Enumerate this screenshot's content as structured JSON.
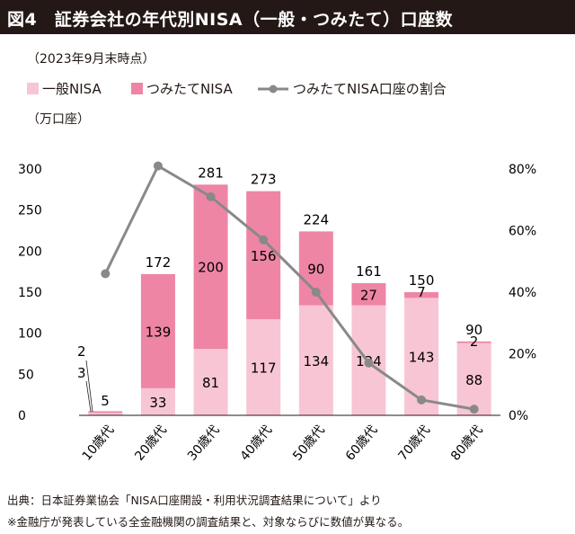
{
  "title": "図4　証券会社の年代別NISA（一般・つみたて）口座数",
  "date_note": "（2023年9月末時点）",
  "unit_note": "（万口座）",
  "colors": {
    "general": "#f8c5d4",
    "tsumitate": "#ee85a5",
    "line": "#898989",
    "title_bg": "#231815"
  },
  "chart_data": {
    "type": "bar",
    "categories": [
      "10歳代",
      "20歳代",
      "30歳代",
      "40歳代",
      "50歳代",
      "60歳代",
      "70歳代",
      "80歳代"
    ],
    "series": [
      {
        "name": "一般NISA",
        "type": "bar",
        "values": [
          3,
          33,
          81,
          117,
          134,
          134,
          143,
          88
        ]
      },
      {
        "name": "つみたてNISA",
        "type": "bar",
        "values": [
          2,
          139,
          200,
          156,
          90,
          27,
          7,
          2
        ]
      },
      {
        "name": "つみたてNISA口座の割合",
        "type": "line",
        "axis": "right",
        "values": [
          0.46,
          0.81,
          0.71,
          0.57,
          0.4,
          0.17,
          0.05,
          0.02
        ]
      }
    ],
    "bar_labels": [
      "5",
      "172",
      "281",
      "273",
      "224",
      "161",
      "150",
      "90"
    ],
    "ylim": [
      0,
      300
    ],
    "yticks": [
      "0",
      "50",
      "100",
      "150",
      "200",
      "250",
      "300"
    ],
    "y2lim": [
      0,
      0.8
    ],
    "y2ticks": [
      "0%",
      "20%",
      "40%",
      "60%",
      "80%"
    ],
    "legend_position": "top-left",
    "grid": false
  },
  "footer": {
    "source": "出典：日本証券業協会「NISA口座開設・利用状況調査結果について」より",
    "note": "※金融庁が発表している全金融機関の調査結果と、対象ならびに数値が異なる。"
  }
}
